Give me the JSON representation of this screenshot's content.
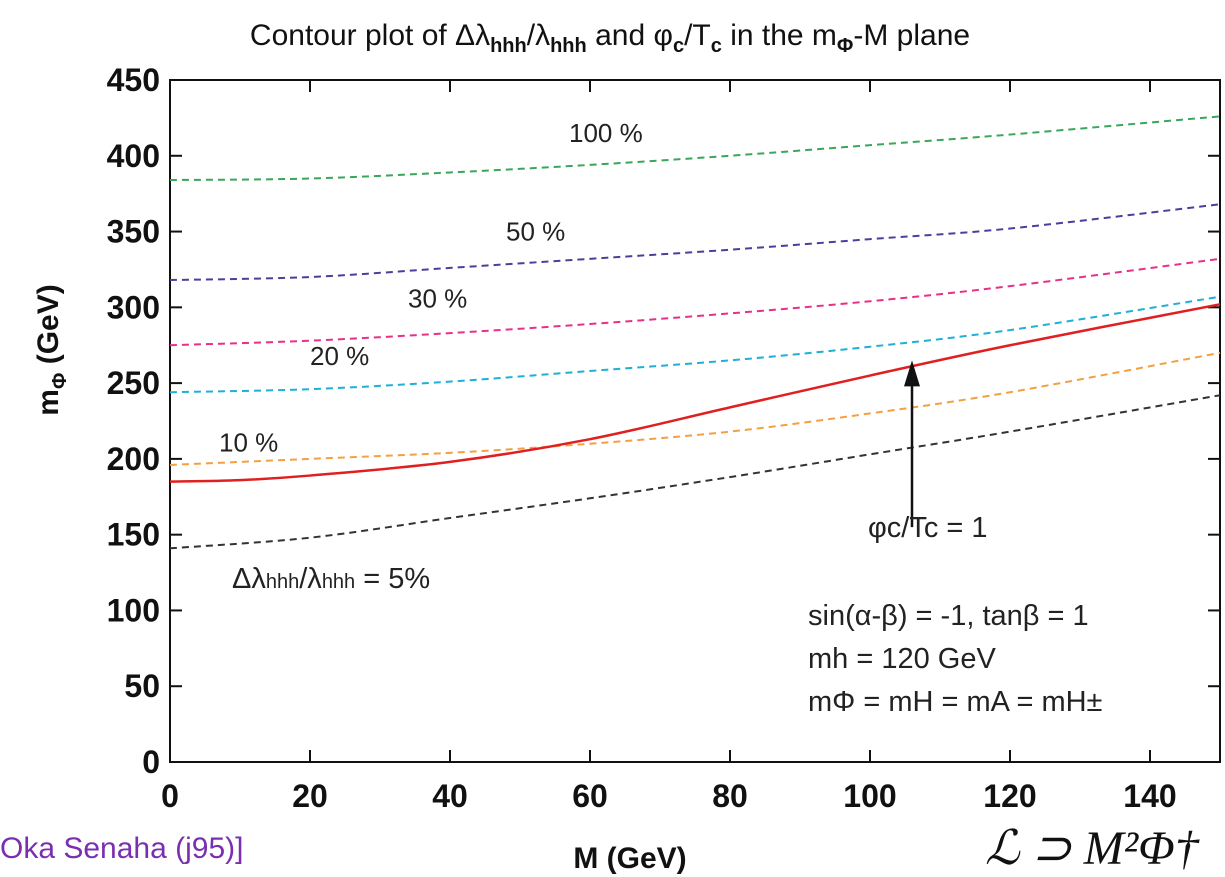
{
  "chart_data": {
    "type": "line",
    "title": "Contour plot of Δλhhh/λhhh and φc/Tc in the mΦ-M plane",
    "title_parts": [
      "Contour plot of Δλ",
      "hhh",
      "/λ",
      "hhh",
      " and φ",
      "c",
      "/T",
      "c",
      " in the m",
      "Φ",
      "-M plane"
    ],
    "xlabel": "M (GeV)",
    "ylabel_main": "m",
    "ylabel_sub": "Φ",
    "ylabel_unit": " (GeV)",
    "xlim": [
      0,
      150
    ],
    "ylim": [
      0,
      450
    ],
    "xticks": [
      "0",
      "20",
      "40",
      "60",
      "80",
      "100",
      "120",
      "140"
    ],
    "yticks": [
      "0",
      "50",
      "100",
      "150",
      "200",
      "250",
      "300",
      "350",
      "400",
      "450"
    ],
    "grid": false,
    "series": [
      {
        "color": "#3aa65a",
        "dash": true,
        "x": [
          0,
          20,
          40,
          60,
          80,
          100,
          120,
          150
        ],
        "y": [
          384,
          385,
          389,
          394,
          400,
          407,
          414,
          426
        ]
      },
      {
        "color": "#4a3f9a",
        "dash": true,
        "x": [
          0,
          20,
          40,
          60,
          80,
          100,
          120,
          150
        ],
        "y": [
          318,
          320,
          326,
          332,
          338,
          345,
          352,
          368
        ]
      },
      {
        "color": "#e8308a",
        "dash": true,
        "x": [
          0,
          20,
          40,
          60,
          80,
          100,
          120,
          150
        ],
        "y": [
          275,
          278,
          283,
          289,
          296,
          304,
          314,
          332
        ]
      },
      {
        "color": "#1fb0d8",
        "dash": true,
        "x": [
          0,
          20,
          40,
          60,
          80,
          100,
          120,
          150
        ],
        "y": [
          244,
          246,
          251,
          258,
          265,
          274,
          285,
          307
        ]
      },
      {
        "color": "#f4a040",
        "dash": true,
        "x": [
          0,
          20,
          40,
          60,
          80,
          100,
          120,
          150
        ],
        "y": [
          196,
          200,
          204,
          210,
          218,
          230,
          244,
          270
        ]
      },
      {
        "color": "#333333",
        "dash": true,
        "x": [
          0,
          20,
          40,
          60,
          80,
          100,
          120,
          150
        ],
        "y": [
          141,
          148,
          161,
          174,
          188,
          203,
          218,
          242
        ]
      },
      {
        "color": "#e02020",
        "dash": false,
        "x": [
          0,
          10,
          20,
          40,
          60,
          80,
          100,
          120,
          150
        ],
        "y": [
          185,
          186,
          189,
          198,
          213,
          234,
          255,
          275,
          302
        ]
      }
    ],
    "percent_labels": [
      {
        "text": "100 %",
        "x": 57,
        "y": 409
      },
      {
        "text": "50 %",
        "x": 48,
        "y": 344
      },
      {
        "text": "30 %",
        "x": 34,
        "y": 300
      },
      {
        "text": "20 %",
        "x": 20,
        "y": 262
      },
      {
        "text": "10 %",
        "x": 7,
        "y": 205
      }
    ],
    "annotations": {
      "delta_label": "Δλhhh/λhhh = 5%",
      "delta_parts": [
        "Δλ",
        "hhh",
        "/λ",
        "hhh",
        " = 5%"
      ],
      "phi_label": "φc/Tc = 1",
      "arrow": {
        "x": 106,
        "y_from": 155,
        "y_to": 265
      },
      "params_line1": "sin(α-β) = -1, tanβ = 1",
      "params_line2": "mh = 120 GeV",
      "params_line3": "mΦ = mH = mA = mH±"
    }
  },
  "footer": {
    "left_text": "Oka   Senaha  (j95)]",
    "right_formula": "ℒ ⊃ M²Φ†"
  }
}
